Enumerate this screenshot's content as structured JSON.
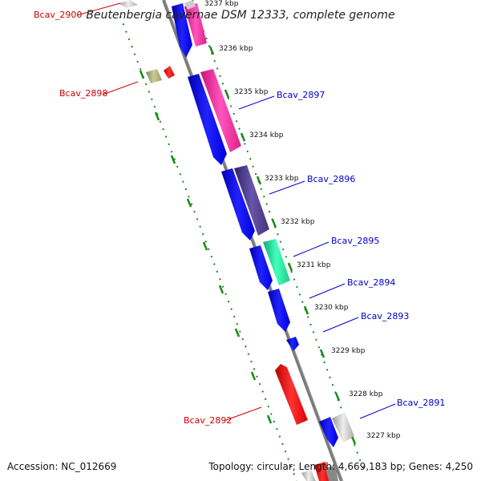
{
  "title": "Beutenbergia cavernae DSM 12333, complete genome",
  "footer": {
    "accession": "Accession: NC_012669",
    "topology": "Topology: circular; Length: 4,669,183 bp; Genes: 4,250"
  },
  "colors": {
    "forward_label": "#0000cc",
    "reverse_label": "#cc0000",
    "backbone": "#808080",
    "ruler_ticks": "#008000"
  },
  "kbp_labels": [
    "3237 kbp",
    "3236 kbp",
    "3235 kbp",
    "3234 kbp",
    "3233 kbp",
    "3232 kbp",
    "3231 kbp",
    "3230 kbp",
    "3229 kbp",
    "3228 kbp",
    "3227 kbp"
  ],
  "gene_labels": [
    {
      "id": "Bcav_2900",
      "strand": "reverse"
    },
    {
      "id": "Bcav_2898",
      "strand": "reverse"
    },
    {
      "id": "Bcav_2897",
      "strand": "forward"
    },
    {
      "id": "Bcav_2896",
      "strand": "forward"
    },
    {
      "id": "Bcav_2895",
      "strand": "forward"
    },
    {
      "id": "Bcav_2894",
      "strand": "forward"
    },
    {
      "id": "Bcav_2893",
      "strand": "forward"
    },
    {
      "id": "Bcav_2892",
      "strand": "reverse"
    },
    {
      "id": "Bcav_2891",
      "strand": "forward"
    }
  ]
}
